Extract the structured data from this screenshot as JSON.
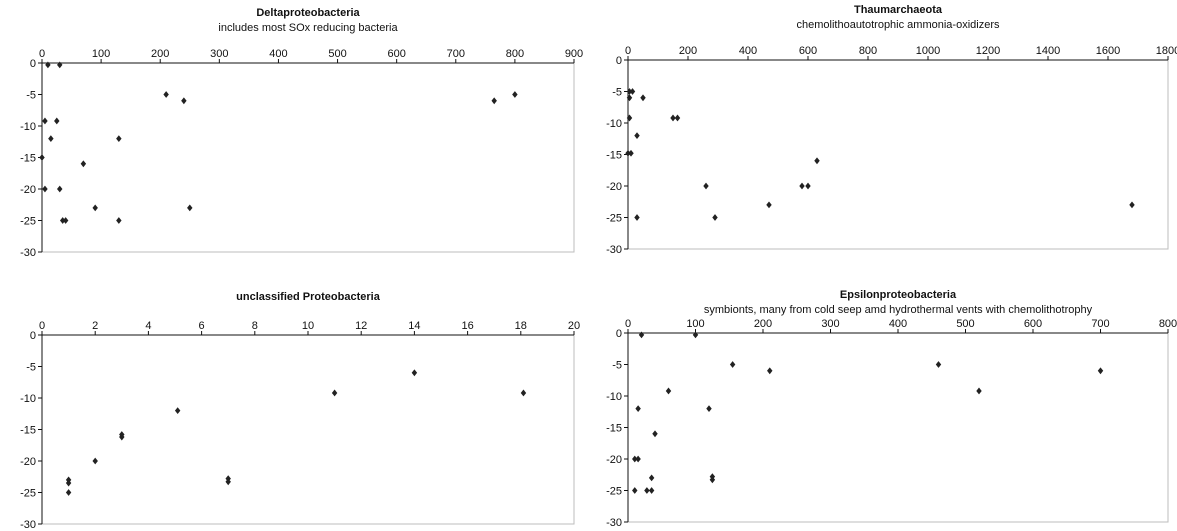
{
  "chart_data": [
    {
      "type": "scatter",
      "title": "Deltaproteobacteria",
      "subtitle": "includes most SOx reducing bacteria",
      "xlabel": "",
      "ylabel": "",
      "xlim": [
        0,
        900
      ],
      "ylim": [
        -30,
        0
      ],
      "xticks": [
        0,
        100,
        200,
        300,
        400,
        500,
        600,
        700,
        800,
        900
      ],
      "yticks": [
        0,
        -5,
        -10,
        -15,
        -20,
        -25,
        -30
      ],
      "grid": false,
      "legend": "none",
      "marker_color": "#222222",
      "points": [
        [
          10,
          -0.3
        ],
        [
          30,
          -0.3
        ],
        [
          5,
          -9.2
        ],
        [
          25,
          -9.2
        ],
        [
          15,
          -12
        ],
        [
          0,
          -15
        ],
        [
          70,
          -16
        ],
        [
          5,
          -20
        ],
        [
          30,
          -20
        ],
        [
          35,
          -25
        ],
        [
          40,
          -25
        ],
        [
          90,
          -23
        ],
        [
          130,
          -12
        ],
        [
          130,
          -25
        ],
        [
          210,
          -5
        ],
        [
          240,
          -6
        ],
        [
          250,
          -23
        ],
        [
          765,
          -6
        ],
        [
          800,
          -5
        ]
      ]
    },
    {
      "type": "scatter",
      "title": "Thaumarchaeota",
      "subtitle": "chemolithoautotrophic ammonia-oxidizers",
      "xlabel": "",
      "ylabel": "",
      "xlim": [
        0,
        1800
      ],
      "ylim": [
        -30,
        0
      ],
      "xticks": [
        0,
        200,
        400,
        600,
        800,
        1000,
        1200,
        1400,
        1600,
        1800
      ],
      "yticks": [
        0,
        -5,
        -10,
        -15,
        -20,
        -25,
        -30
      ],
      "grid": false,
      "legend": "none",
      "marker_color": "#222222",
      "points": [
        [
          5,
          -5
        ],
        [
          15,
          -5
        ],
        [
          5,
          -6
        ],
        [
          50,
          -6
        ],
        [
          5,
          -9.2
        ],
        [
          30,
          -12
        ],
        [
          0,
          -14.8
        ],
        [
          10,
          -14.8
        ],
        [
          150,
          -9.2
        ],
        [
          165,
          -9.2
        ],
        [
          30,
          -25
        ],
        [
          260,
          -20
        ],
        [
          290,
          -25
        ],
        [
          470,
          -23
        ],
        [
          580,
          -20
        ],
        [
          600,
          -20
        ],
        [
          630,
          -16
        ],
        [
          1680,
          -23
        ]
      ]
    },
    {
      "type": "scatter",
      "title": "unclassified Proteobacteria",
      "subtitle": "",
      "xlabel": "",
      "ylabel": "",
      "xlim": [
        0,
        20
      ],
      "ylim": [
        -30,
        0
      ],
      "xticks": [
        0,
        2,
        4,
        6,
        8,
        10,
        12,
        14,
        16,
        18,
        20
      ],
      "yticks": [
        0,
        -5,
        -10,
        -15,
        -20,
        -25,
        -30
      ],
      "grid": false,
      "legend": "none",
      "marker_color": "#222222",
      "points": [
        [
          1,
          -23
        ],
        [
          1,
          -23.5
        ],
        [
          1,
          -25
        ],
        [
          2,
          -20
        ],
        [
          3,
          -15.8
        ],
        [
          3,
          -16.2
        ],
        [
          5.1,
          -12
        ],
        [
          7,
          -22.8
        ],
        [
          7,
          -23.3
        ],
        [
          11,
          -9.2
        ],
        [
          14,
          -6
        ],
        [
          18.1,
          -9.2
        ]
      ]
    },
    {
      "type": "scatter",
      "title": "Epsilonproteobacteria",
      "subtitle": "symbionts, many from cold seep amd hydrothermal vents with chemolithotrophy",
      "xlabel": "",
      "ylabel": "",
      "xlim": [
        0,
        800
      ],
      "ylim": [
        -30,
        0
      ],
      "xticks": [
        0,
        100,
        200,
        300,
        400,
        500,
        600,
        700,
        800
      ],
      "yticks": [
        0,
        -5,
        -10,
        -15,
        -20,
        -25,
        -30
      ],
      "grid": false,
      "legend": "none",
      "marker_color": "#222222",
      "points": [
        [
          20,
          -0.3
        ],
        [
          100,
          -0.3
        ],
        [
          10,
          -20
        ],
        [
          15,
          -20
        ],
        [
          15,
          -12
        ],
        [
          10,
          -25
        ],
        [
          28,
          -25
        ],
        [
          35,
          -25
        ],
        [
          35,
          -23
        ],
        [
          40,
          -16
        ],
        [
          60,
          -9.2
        ],
        [
          120,
          -12
        ],
        [
          125,
          -22.8
        ],
        [
          125,
          -23.3
        ],
        [
          155,
          -5
        ],
        [
          210,
          -6
        ],
        [
          460,
          -5
        ],
        [
          520,
          -9.2
        ],
        [
          700,
          -6
        ]
      ]
    }
  ]
}
